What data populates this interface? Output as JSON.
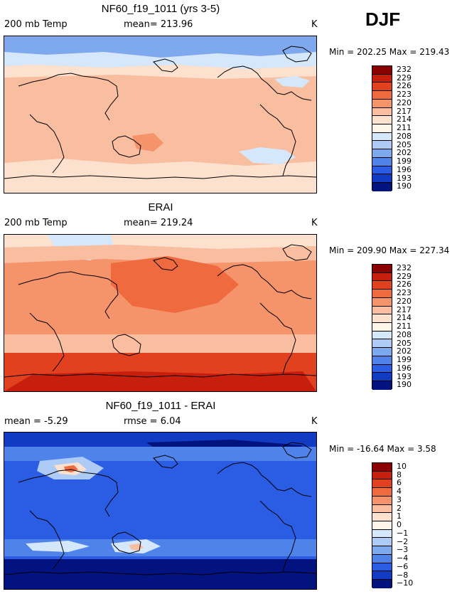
{
  "season": "DJF",
  "chart_data": [
    {
      "type": "heatmap",
      "title": "NF60_f19_1011 (yrs 3-5)",
      "variable": "200 mb Temp",
      "stat_left": "mean=  213.96",
      "units": "K",
      "minmax": "Min = 202.25  Max = 219.43",
      "min": 202.25,
      "max": 219.43,
      "mean": 213.96,
      "levels": [
        "232",
        "229",
        "226",
        "223",
        "220",
        "217",
        "214",
        "211",
        "208",
        "205",
        "202",
        "199",
        "196",
        "193",
        "190"
      ],
      "colors": [
        "#8b0000",
        "#c81e0e",
        "#e2411f",
        "#f06a3f",
        "#f5936b",
        "#f9bda0",
        "#fde1cf",
        "#fdf5e8",
        "#d5e7fa",
        "#aecbf5",
        "#7fa9ef",
        "#5083ea",
        "#2a5ce4",
        "#113bc2",
        "#02127e"
      ]
    },
    {
      "type": "heatmap",
      "title": "ERAI",
      "variable": "200 mb Temp",
      "stat_left": "mean=  219.24",
      "units": "K",
      "minmax": "Min = 209.90  Max = 227.34",
      "min": 209.9,
      "max": 227.34,
      "mean": 219.24,
      "levels": [
        "232",
        "229",
        "226",
        "223",
        "220",
        "217",
        "214",
        "211",
        "208",
        "205",
        "202",
        "199",
        "196",
        "193",
        "190"
      ],
      "colors": [
        "#8b0000",
        "#c81e0e",
        "#e2411f",
        "#f06a3f",
        "#f5936b",
        "#f9bda0",
        "#fde1cf",
        "#fdf5e8",
        "#d5e7fa",
        "#aecbf5",
        "#7fa9ef",
        "#5083ea",
        "#2a5ce4",
        "#113bc2",
        "#02127e"
      ]
    },
    {
      "type": "heatmap",
      "title": "NF60_f19_1011 - ERAI",
      "variable": "mean =   -5.29",
      "stat_left": "rmse =    6.04",
      "units": "K",
      "minmax": "Min = -16.64  Max =    3.58",
      "min": -16.64,
      "max": 3.58,
      "mean": -5.29,
      "rmse": 6.04,
      "levels": [
        "10",
        "8",
        "6",
        "4",
        "3",
        "2",
        "1",
        "0",
        "−1",
        "−2",
        "−3",
        "−4",
        "−6",
        "−8",
        "−10"
      ],
      "colors": [
        "#8b0000",
        "#c81e0e",
        "#e2411f",
        "#f06a3f",
        "#f5936b",
        "#f9bda0",
        "#fde1cf",
        "#fdf5e8",
        "#d5e7fa",
        "#aecbf5",
        "#7fa9ef",
        "#5083ea",
        "#2a5ce4",
        "#113bc2",
        "#02127e"
      ]
    }
  ]
}
